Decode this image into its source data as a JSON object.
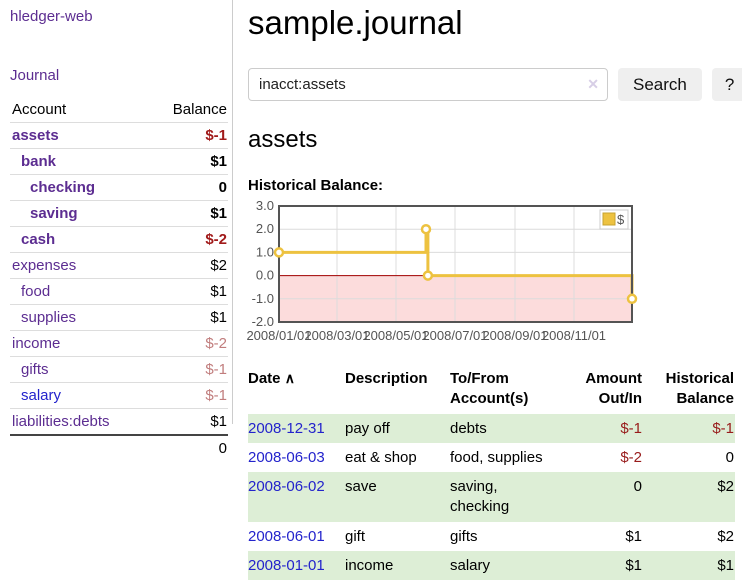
{
  "app": {
    "title": "hledger-web"
  },
  "sidebar": {
    "journal_link": "Journal",
    "table": {
      "headers": {
        "account": "Account",
        "balance": "Balance"
      },
      "accounts": [
        {
          "name": "assets",
          "indent": 1,
          "bold": true,
          "balance": "$-1",
          "balance_style": "neg"
        },
        {
          "name": "bank",
          "indent": 2,
          "bold": true,
          "balance": "$1",
          "balance_style": ""
        },
        {
          "name": "checking",
          "indent": 3,
          "bold": true,
          "balance": "0",
          "balance_style": ""
        },
        {
          "name": "saving",
          "indent": 3,
          "bold": true,
          "balance": "$1",
          "balance_style": ""
        },
        {
          "name": "cash",
          "indent": 2,
          "bold": true,
          "balance": "$-2",
          "balance_style": "neg"
        },
        {
          "name": "expenses",
          "indent": 1,
          "bold": false,
          "balance": "$2",
          "balance_style": ""
        },
        {
          "name": "food",
          "indent": 2,
          "bold": false,
          "balance": "$1",
          "balance_style": ""
        },
        {
          "name": "supplies",
          "indent": 2,
          "bold": false,
          "balance": "$1",
          "balance_style": ""
        },
        {
          "name": "income",
          "indent": 1,
          "bold": false,
          "balance": "$-2",
          "balance_style": "negmuted"
        },
        {
          "name": "gifts",
          "indent": 2,
          "bold": false,
          "balance": "$-1",
          "balance_style": "negmuted"
        },
        {
          "name": "salary",
          "indent": 2,
          "bold": false,
          "balance": "$-1",
          "balance_style": "negmuted",
          "link_style": "blue"
        },
        {
          "name": "liabilities:debts",
          "indent": 1,
          "bold": false,
          "balance": "$1",
          "balance_style": ""
        }
      ],
      "total": "0"
    }
  },
  "main": {
    "title": "sample.journal",
    "search": {
      "query": "inacct:assets",
      "clear_icon": "✕",
      "button": "Search",
      "help_button": "?"
    },
    "account_heading": "assets"
  },
  "chart_data": {
    "type": "line",
    "step": true,
    "title": "Historical Balance:",
    "series": [
      {
        "name": "$",
        "color": "#edc240",
        "points": [
          [
            "2008-01-01",
            1
          ],
          [
            "2008-06-01",
            2
          ],
          [
            "2008-06-03",
            0
          ],
          [
            "2008-12-31",
            -1
          ]
        ]
      }
    ],
    "x_ticks": [
      "2008/01/01",
      "2008/03/01",
      "2008/05/01",
      "2008/07/01",
      "2008/09/01",
      "2008/11/01"
    ],
    "y_ticks": [
      "3.0",
      "2.0",
      "1.0",
      "0.0",
      "-1.0",
      "-2.0"
    ],
    "xlim": [
      "2008-01-01",
      "2008-12-31"
    ],
    "ylim": [
      -2,
      3
    ],
    "grid": true,
    "legend_position": "top-right",
    "negative_fill": "#fcdcdc",
    "zero_line_color": "#a40000",
    "grid_color": "#dcdcdc",
    "border_color": "#545454",
    "axis_text_color": "#545454"
  },
  "transactions": {
    "headers": {
      "date": "Date",
      "sort_icon": "∧",
      "description": "Description",
      "accounts": "To/From Account(s)",
      "amount": "Amount Out/In",
      "balance": "Historical Balance"
    },
    "rows": [
      {
        "date": "2008-12-31",
        "description": "pay off",
        "accounts": "debts",
        "amount": "$-1",
        "amount_neg": true,
        "balance": "$-1",
        "balance_neg": true
      },
      {
        "date": "2008-06-03",
        "description": "eat & shop",
        "accounts": "food, supplies",
        "amount": "$-2",
        "amount_neg": true,
        "balance": "0",
        "balance_neg": false
      },
      {
        "date": "2008-06-02",
        "description": "save",
        "accounts": "saving, checking",
        "amount": "0",
        "amount_neg": false,
        "balance": "$2",
        "balance_neg": false
      },
      {
        "date": "2008-06-01",
        "description": "gift",
        "accounts": "gifts",
        "amount": "$1",
        "amount_neg": false,
        "balance": "$2",
        "balance_neg": false
      },
      {
        "date": "2008-01-01",
        "description": "income",
        "accounts": "salary",
        "amount": "$1",
        "amount_neg": false,
        "balance": "$1",
        "balance_neg": false
      }
    ]
  },
  "colors": {
    "link_purple": "#5c2d91",
    "link_blue": "#2323cc",
    "negative_strong": "#a11a1a",
    "negative_muted": "#c17d7d",
    "negative_table": "#981b1b",
    "row_stripe_green": "#ddeed6",
    "chart_line": "#edc240",
    "chart_negative_region": "#fcdcdc",
    "button_bg": "#efefef"
  }
}
